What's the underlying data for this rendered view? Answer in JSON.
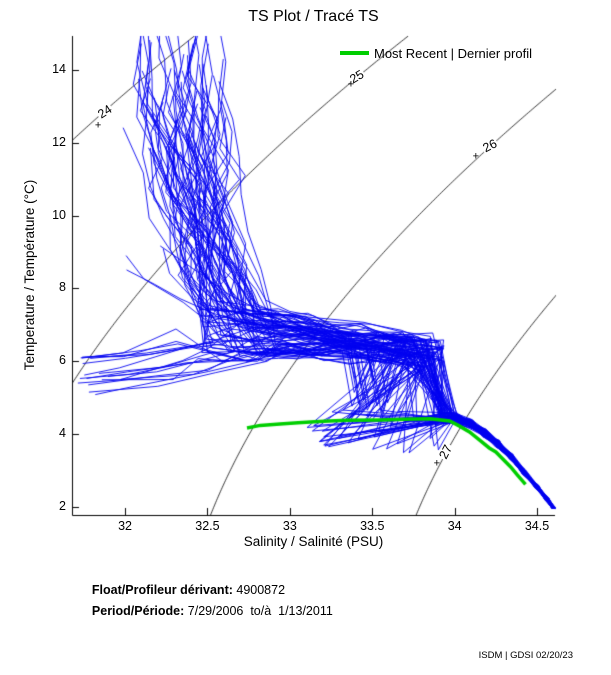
{
  "watermark": "ISDM | GDSI 02/20/23",
  "footer": {
    "float_label": "Float/Profileur dérivant:",
    "float_value": " 4900872",
    "period_label": "Period/Période:",
    "period_value": " 7/29/2006  to/à  1/13/2011"
  },
  "chart_data": {
    "type": "line",
    "title": "TS Plot / Tracé TS",
    "xlabel": "Salinity / Salinité (PSU)",
    "ylabel": "Temperature / Température (°C)",
    "xlim": [
      31.678,
      34.609
    ],
    "ylim": [
      1.78,
      14.93
    ],
    "xticks": [
      32,
      32.5,
      33,
      33.5,
      34,
      34.5
    ],
    "yticks": [
      2,
      4,
      6,
      8,
      10,
      12,
      14
    ],
    "grid": false,
    "legend_position": "top-right-inside",
    "series": [
      {
        "name": "Most Recent | Dernier profil",
        "color": "#00ce00",
        "line_width": 3.5,
        "points": [
          [
            32.74,
            4.17
          ],
          [
            32.82,
            4.24
          ],
          [
            32.94,
            4.28
          ],
          [
            33.05,
            4.31
          ],
          [
            33.15,
            4.34
          ],
          [
            33.24,
            4.36
          ],
          [
            33.35,
            4.38
          ],
          [
            33.55,
            4.39
          ],
          [
            33.7,
            4.41
          ],
          [
            33.85,
            4.42
          ],
          [
            33.97,
            4.36
          ],
          [
            34.03,
            4.22
          ],
          [
            34.09,
            4.06
          ],
          [
            34.15,
            3.84
          ],
          [
            34.21,
            3.62
          ],
          [
            34.25,
            3.51
          ],
          [
            34.34,
            3.1
          ],
          [
            34.38,
            2.88
          ],
          [
            34.43,
            2.62
          ]
        ]
      }
    ],
    "ensemble": {
      "description": "Historical Argo float TS profiles 7/29/2006 - 1/13/2011: near-vertical warm fan at S 32.1-32.6 from T 15 down to thermocline, isothermal band T ~6-7 across S 32.5-33.9, sparse dips to T 3.4-4.7, convergence to a tight deep tail ending near S 34.6, T 2.0",
      "color": "#0000f0",
      "line_width": 0.9,
      "n_profiles": 92,
      "seed": 20,
      "fractions": {
        "warm_surface": 0.58,
        "cold_fresh": 0.16,
        "mid_start": 0.26
      },
      "envelope": {
        "surface_warm_S": [
          32.08,
          32.62
        ],
        "surface_warm_T": [
          12.6,
          15.6
        ],
        "surface_cold_S": [
          31.68,
          31.98
        ],
        "surface_cold_T": [
          4.95,
          6.3
        ],
        "mid_start_S": [
          31.95,
          32.45
        ],
        "mid_start_T": [
          8.2,
          12.6
        ],
        "knee_S": [
          32.45,
          32.92
        ],
        "knee_T": [
          6.05,
          7.7
        ],
        "band_end_S": [
          33.68,
          33.94
        ],
        "band_T": [
          5.85,
          6.75
        ],
        "dip_S": [
          33.1,
          33.95
        ],
        "dip_T": [
          3.4,
          4.7
        ],
        "dip_probability": 0.4,
        "convergence_S": [
          33.9,
          34.02
        ],
        "convergence_T": [
          4.28,
          4.62
        ]
      },
      "deep_tail": [
        [
          34.02,
          4.42
        ],
        [
          34.1,
          4.28
        ],
        [
          34.18,
          4.03
        ],
        [
          34.26,
          3.74
        ],
        [
          34.34,
          3.38
        ],
        [
          34.42,
          2.97
        ],
        [
          34.5,
          2.55
        ],
        [
          34.56,
          2.22
        ],
        [
          34.6,
          1.97
        ]
      ]
    },
    "isopycnals": {
      "color": "#000000",
      "line_width": 0.8,
      "marker": "+",
      "levels": [
        {
          "value": "24",
          "label_S": 31.878,
          "label_T": 12.843,
          "marker_S": 31.836,
          "marker_T": 12.459,
          "rotation_deg": -33
        },
        {
          "value": "25",
          "label_S": 33.407,
          "label_T": 13.805,
          "marker_S": 33.371,
          "marker_T": 13.585,
          "rotation_deg": -31
        },
        {
          "value": "26",
          "label_S": 34.214,
          "label_T": 11.91,
          "marker_S": 34.129,
          "marker_T": 11.608,
          "rotation_deg": -27
        },
        {
          "value": "27",
          "label_S": 33.947,
          "label_T": 3.51,
          "marker_S": 33.892,
          "marker_T": 3.18,
          "rotation_deg": -63
        }
      ]
    }
  }
}
